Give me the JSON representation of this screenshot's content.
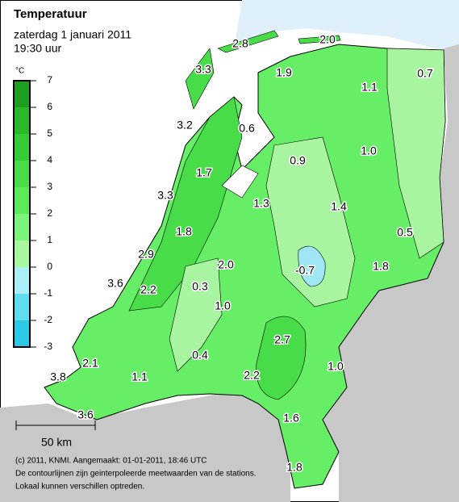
{
  "header": {
    "title": "Temperatuur",
    "date": "zaterdag 1 januari 2011",
    "time": "19:30 uur"
  },
  "legend": {
    "unit": "°C",
    "ticks": [
      7,
      6,
      5,
      4,
      3,
      2,
      1,
      0,
      -1,
      -2,
      -3
    ],
    "colors": [
      "#1f9f1f",
      "#2bb82b",
      "#36cc36",
      "#48dd48",
      "#5aea5a",
      "#7af47a",
      "#a8f8a0",
      "#aaeef8",
      "#5fdcee",
      "#2cc8e8"
    ]
  },
  "stations": [
    "2.8",
    "2.0",
    "3.3",
    "1.9",
    "0.7",
    "1.1",
    "3.2",
    "0.6",
    "1.0",
    "0.9",
    "1.7",
    "3.3",
    "1.3",
    "1.4",
    "0.5",
    "1.8",
    "2.9",
    "2.0",
    "-0.7",
    "1.8",
    "3.6",
    "2.2",
    "0.3",
    "1.0",
    "2.7",
    "2.1",
    "0.4",
    "1.0",
    "3.8",
    "1.1",
    "2.2",
    "3.6",
    "1.6",
    "1.8"
  ],
  "scale": "50 km",
  "footer": [
    "(c) 2011, KNMI. Aangemaakt: 01-01-2011, 18:46 UTC",
    "De contourlijnen zijn geinterpoleerde meetwaarden van de stations.",
    "Lokaal kunnen verschillen optreden."
  ]
}
